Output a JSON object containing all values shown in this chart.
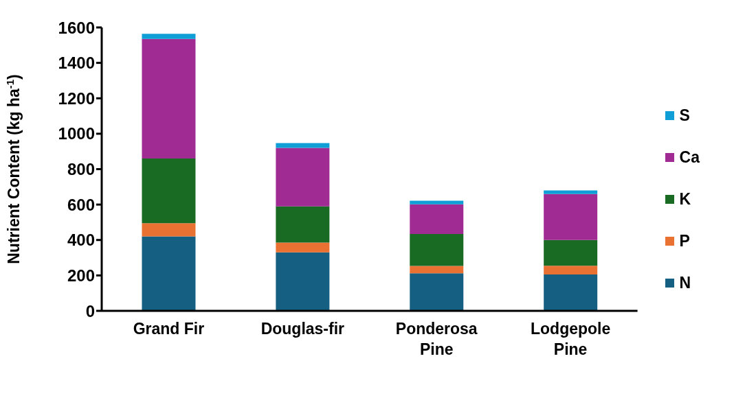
{
  "chart_data": {
    "type": "bar",
    "stacked": true,
    "ylabel": "Nutrient Content (kg ha$^{-1}$)",
    "categories": [
      "Grand Fir",
      "Douglas-fir",
      "Ponderosa Pine",
      "Lodgepole Pine"
    ],
    "series": [
      {
        "name": "N",
        "color": "#156082",
        "values": [
          420,
          330,
          212,
          205
        ]
      },
      {
        "name": "P",
        "color": "#e97132",
        "values": [
          75,
          55,
          42,
          50
        ]
      },
      {
        "name": "K",
        "color": "#196b24",
        "values": [
          365,
          205,
          180,
          145
        ]
      },
      {
        "name": "Ca",
        "color": "#a02b93",
        "values": [
          675,
          330,
          167,
          260
        ]
      },
      {
        "name": "S",
        "color": "#0f9ed5",
        "values": [
          29,
          27,
          21,
          20
        ]
      }
    ],
    "ylim": [
      0,
      1600
    ],
    "yticks": [
      0,
      200,
      400,
      600,
      800,
      1000,
      1200,
      1400,
      1600
    ],
    "grid": false,
    "legend": "right"
  }
}
